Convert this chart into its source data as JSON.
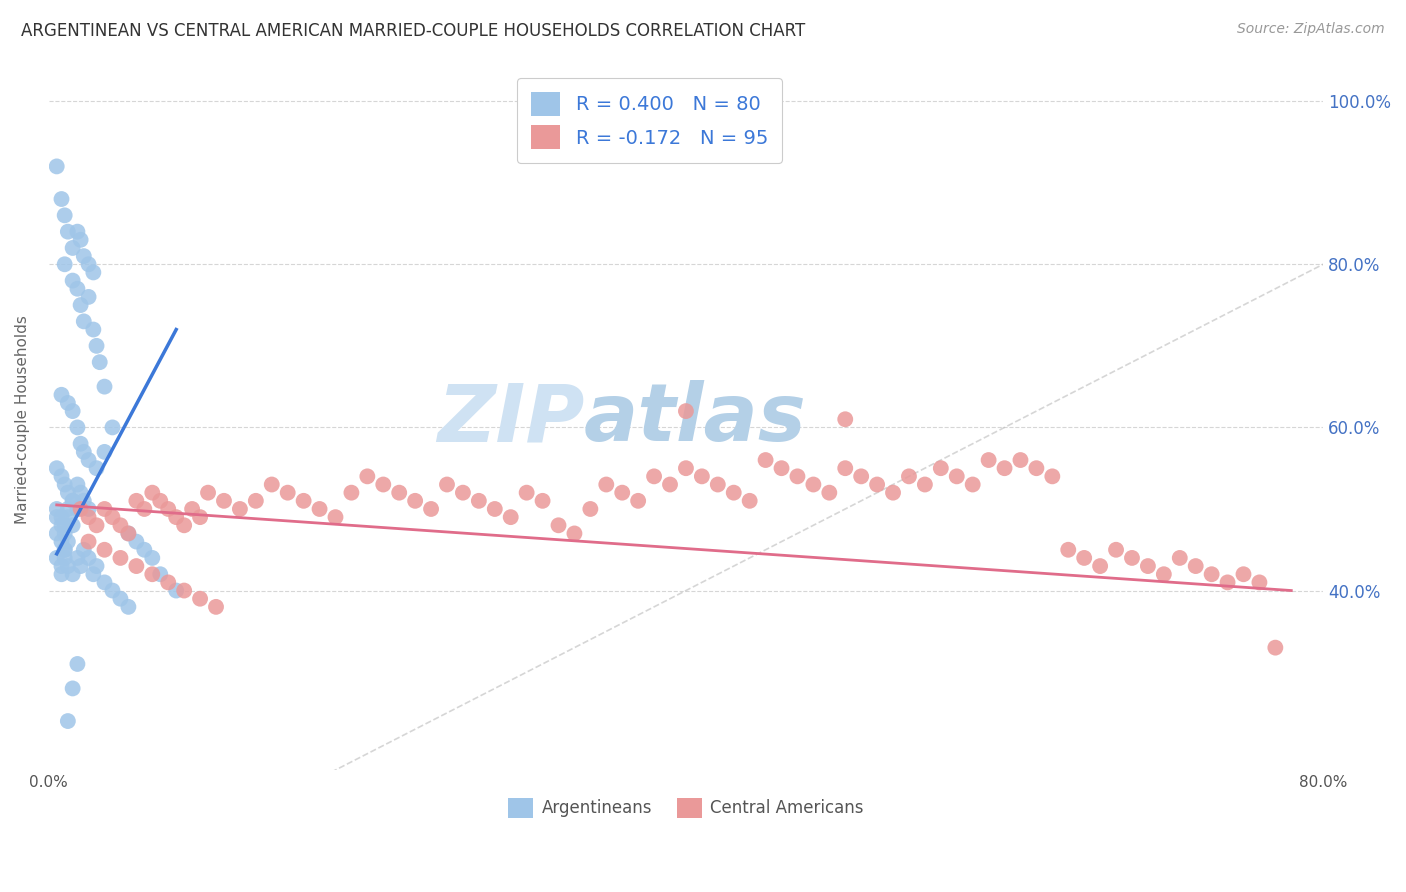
{
  "title": "ARGENTINEAN VS CENTRAL AMERICAN MARRIED-COUPLE HOUSEHOLDS CORRELATION CHART",
  "source": "Source: ZipAtlas.com",
  "ylabel": "Married-couple Households",
  "x_min": 0.0,
  "x_max": 0.8,
  "y_min": 0.18,
  "y_max": 1.04,
  "y_ticks": [
    0.4,
    0.6,
    0.8,
    1.0
  ],
  "y_tick_labels": [
    "40.0%",
    "60.0%",
    "80.0%",
    "100.0%"
  ],
  "blue_color": "#9fc5e8",
  "pink_color": "#ea9999",
  "blue_line_color": "#3c78d8",
  "pink_line_color": "#e06c8a",
  "diag_color": "#bbbbbb",
  "grid_color": "#cccccc",
  "watermark_zip_color": "#cfe2f3",
  "watermark_atlas_color": "#b4d0e7",
  "legend_text_color": "#3c78d8",
  "legend_label_blue": "Argentineans",
  "legend_label_pink": "Central Americans",
  "title_color": "#333333",
  "source_color": "#999999",
  "ylabel_color": "#666666",
  "tick_label_color": "#4472c4",
  "bottom_legend_color": "#555555",
  "blue_scatter": {
    "x": [
      0.005,
      0.008,
      0.01,
      0.012,
      0.015,
      0.018,
      0.02,
      0.022,
      0.025,
      0.028,
      0.01,
      0.015,
      0.018,
      0.02,
      0.022,
      0.025,
      0.028,
      0.03,
      0.032,
      0.035,
      0.008,
      0.012,
      0.015,
      0.018,
      0.02,
      0.022,
      0.025,
      0.03,
      0.035,
      0.04,
      0.005,
      0.008,
      0.01,
      0.012,
      0.015,
      0.018,
      0.02,
      0.022,
      0.025,
      0.005,
      0.008,
      0.01,
      0.012,
      0.015,
      0.005,
      0.008,
      0.01,
      0.012,
      0.015,
      0.018,
      0.005,
      0.008,
      0.01,
      0.012,
      0.05,
      0.055,
      0.06,
      0.065,
      0.07,
      0.08,
      0.005,
      0.008,
      0.01,
      0.008,
      0.01,
      0.012,
      0.015,
      0.018,
      0.02,
      0.022,
      0.025,
      0.028,
      0.03,
      0.035,
      0.04,
      0.045,
      0.05,
      0.015,
      0.012,
      0.018
    ],
    "y": [
      0.92,
      0.88,
      0.86,
      0.84,
      0.82,
      0.84,
      0.83,
      0.81,
      0.8,
      0.79,
      0.8,
      0.78,
      0.77,
      0.75,
      0.73,
      0.76,
      0.72,
      0.7,
      0.68,
      0.65,
      0.64,
      0.63,
      0.62,
      0.6,
      0.58,
      0.57,
      0.56,
      0.55,
      0.57,
      0.6,
      0.55,
      0.54,
      0.53,
      0.52,
      0.51,
      0.53,
      0.52,
      0.51,
      0.5,
      0.5,
      0.49,
      0.48,
      0.5,
      0.51,
      0.49,
      0.48,
      0.47,
      0.49,
      0.48,
      0.5,
      0.47,
      0.46,
      0.45,
      0.46,
      0.47,
      0.46,
      0.45,
      0.44,
      0.42,
      0.4,
      0.44,
      0.43,
      0.45,
      0.42,
      0.44,
      0.43,
      0.42,
      0.44,
      0.43,
      0.45,
      0.44,
      0.42,
      0.43,
      0.41,
      0.4,
      0.39,
      0.38,
      0.28,
      0.24,
      0.31
    ]
  },
  "pink_scatter": {
    "x": [
      0.02,
      0.025,
      0.03,
      0.035,
      0.04,
      0.045,
      0.05,
      0.055,
      0.06,
      0.065,
      0.07,
      0.075,
      0.08,
      0.085,
      0.09,
      0.095,
      0.1,
      0.11,
      0.12,
      0.13,
      0.14,
      0.15,
      0.16,
      0.17,
      0.18,
      0.19,
      0.2,
      0.21,
      0.22,
      0.23,
      0.24,
      0.25,
      0.26,
      0.27,
      0.28,
      0.29,
      0.3,
      0.31,
      0.32,
      0.33,
      0.34,
      0.35,
      0.36,
      0.37,
      0.38,
      0.39,
      0.4,
      0.41,
      0.42,
      0.43,
      0.44,
      0.45,
      0.46,
      0.47,
      0.48,
      0.49,
      0.5,
      0.51,
      0.52,
      0.53,
      0.54,
      0.55,
      0.56,
      0.57,
      0.58,
      0.59,
      0.6,
      0.61,
      0.62,
      0.63,
      0.64,
      0.65,
      0.66,
      0.67,
      0.68,
      0.69,
      0.7,
      0.71,
      0.72,
      0.73,
      0.74,
      0.75,
      0.76,
      0.77,
      0.025,
      0.035,
      0.045,
      0.055,
      0.065,
      0.075,
      0.085,
      0.095,
      0.105,
      0.4,
      0.5
    ],
    "y": [
      0.5,
      0.49,
      0.48,
      0.5,
      0.49,
      0.48,
      0.47,
      0.51,
      0.5,
      0.52,
      0.51,
      0.5,
      0.49,
      0.48,
      0.5,
      0.49,
      0.52,
      0.51,
      0.5,
      0.51,
      0.53,
      0.52,
      0.51,
      0.5,
      0.49,
      0.52,
      0.54,
      0.53,
      0.52,
      0.51,
      0.5,
      0.53,
      0.52,
      0.51,
      0.5,
      0.49,
      0.52,
      0.51,
      0.48,
      0.47,
      0.5,
      0.53,
      0.52,
      0.51,
      0.54,
      0.53,
      0.55,
      0.54,
      0.53,
      0.52,
      0.51,
      0.56,
      0.55,
      0.54,
      0.53,
      0.52,
      0.55,
      0.54,
      0.53,
      0.52,
      0.54,
      0.53,
      0.55,
      0.54,
      0.53,
      0.56,
      0.55,
      0.56,
      0.55,
      0.54,
      0.45,
      0.44,
      0.43,
      0.45,
      0.44,
      0.43,
      0.42,
      0.44,
      0.43,
      0.42,
      0.41,
      0.42,
      0.41,
      0.33,
      0.46,
      0.45,
      0.44,
      0.43,
      0.42,
      0.41,
      0.4,
      0.39,
      0.38,
      0.62,
      0.61
    ]
  },
  "blue_line_x": [
    0.005,
    0.08
  ],
  "blue_line_y": [
    0.445,
    0.72
  ],
  "pink_line_x": [
    0.005,
    0.78
  ],
  "pink_line_y": [
    0.505,
    0.4
  ]
}
